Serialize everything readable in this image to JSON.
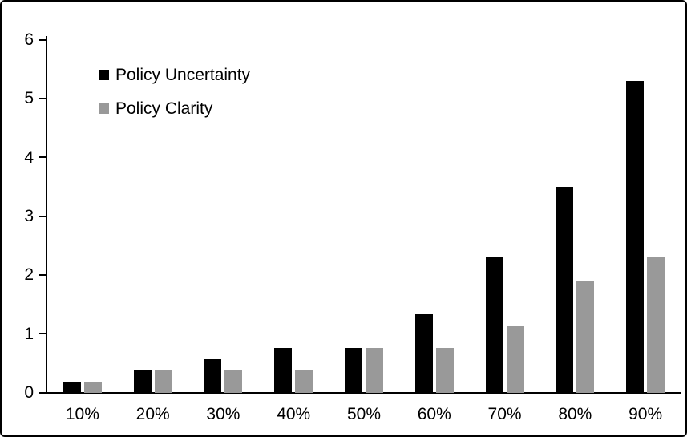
{
  "chart_data": {
    "type": "bar",
    "title": "",
    "xlabel": "",
    "ylabel": "",
    "categories": [
      "10%",
      "20%",
      "30%",
      "40%",
      "50%",
      "60%",
      "70%",
      "80%",
      "90%"
    ],
    "series": [
      {
        "name": "Policy Uncertainty",
        "color": "#000000",
        "values": [
          0.19,
          0.38,
          0.57,
          0.77,
          0.77,
          1.33,
          2.3,
          3.5,
          5.3
        ]
      },
      {
        "name": "Policy Clarity",
        "color": "#999999",
        "values": [
          0.19,
          0.38,
          0.38,
          0.38,
          0.77,
          0.77,
          1.15,
          1.9,
          2.3
        ]
      }
    ],
    "ylim": [
      0,
      6
    ],
    "ytick_interval": 1,
    "ytick_labels": [
      "0",
      "1",
      "2",
      "3",
      "4",
      "5",
      "6"
    ],
    "grid": false,
    "legend_position": "inside-top-left",
    "axis_color": "#000000",
    "frame_border_color": "#000000",
    "background_color": "#ffffff"
  }
}
